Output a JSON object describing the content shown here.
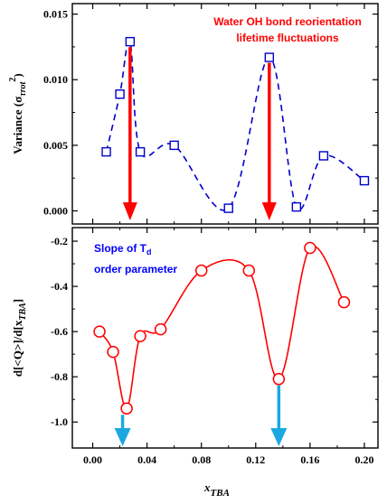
{
  "colors": {
    "top_series": "#0000cc",
    "bottom_series": "#ff0000",
    "red_arrow": "#ff0000",
    "blue_arrow": "#1ba8e0"
  },
  "chart_data": [
    {
      "type": "line",
      "panel": "top",
      "ylabel": "Variance (σ",
      "ylabel_sub": "τrot",
      "ylabel_sup": "2",
      "ylabel_close": ")",
      "xlim": [
        -0.015,
        0.21
      ],
      "ylim": [
        -0.001,
        0.0158
      ],
      "yticks": [
        "0.000",
        "0.005",
        "0.010",
        "0.015"
      ],
      "ytick_values": [
        0.0,
        0.005,
        0.01,
        0.015
      ],
      "series": [
        {
          "marker": "square",
          "line_style": "dashed",
          "x": [
            0.01,
            0.02,
            0.0275,
            0.035,
            0.06,
            0.1,
            0.13,
            0.15,
            0.17,
            0.2
          ],
          "y": [
            0.0045,
            0.0089,
            0.0129,
            0.0045,
            0.005,
            0.0002,
            0.0117,
            0.0003,
            0.0042,
            0.0023
          ]
        }
      ],
      "annotations": {
        "line1": "Water OH bond reorientation",
        "line2": "lifetime fluctuations"
      },
      "arrows_x": [
        0.0275,
        0.13
      ]
    },
    {
      "type": "line",
      "panel": "bottom",
      "ylabel": "d[<Q>]/d[x",
      "ylabel_sub": "TBA",
      "ylabel_close": "]",
      "xlabel": "x",
      "xlabel_sub": "TBA",
      "xlim": [
        -0.015,
        0.21
      ],
      "ylim": [
        -1.115,
        -0.14
      ],
      "xticks": [
        "0.00",
        "0.04",
        "0.08",
        "0.12",
        "0.16",
        "0.20"
      ],
      "xtick_values": [
        0.0,
        0.04,
        0.08,
        0.12,
        0.16,
        0.2
      ],
      "yticks": [
        "-1.0",
        "-0.8",
        "-0.6",
        "-0.4",
        "-0.2"
      ],
      "ytick_values": [
        -1.0,
        -0.8,
        -0.6,
        -0.4,
        -0.2
      ],
      "series": [
        {
          "marker": "circle",
          "line_style": "solid",
          "x": [
            0.005,
            0.015,
            0.025,
            0.035,
            0.05,
            0.08,
            0.115,
            0.137,
            0.16,
            0.185
          ],
          "y": [
            -0.6,
            -0.69,
            -0.94,
            -0.62,
            -0.59,
            -0.33,
            -0.33,
            -0.81,
            -0.23,
            -0.47
          ]
        }
      ],
      "annotations": {
        "line1": "Slope of T",
        "line1_sub": "d",
        "line2": "order parameter"
      },
      "arrows_x": [
        0.022,
        0.137
      ]
    }
  ]
}
